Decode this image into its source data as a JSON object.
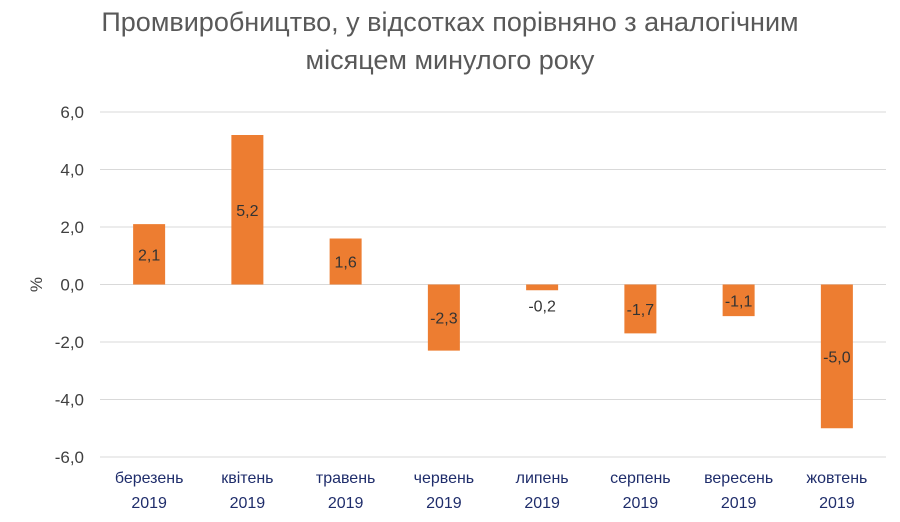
{
  "chart_data": {
    "type": "bar",
    "title_lines": [
      "Промвиробництво, у відсотках порівняно з аналогічним",
      "місяцем минулого року"
    ],
    "ylabel": "%",
    "xlabel": "",
    "ylim": [
      -6,
      6
    ],
    "yticks": [
      "6,0",
      "4,0",
      "2,0",
      "0,0",
      "-2,0",
      "-4,0",
      "-6,0"
    ],
    "ytick_values": [
      6,
      4,
      2,
      0,
      -2,
      -4,
      -6
    ],
    "grid": true,
    "legend": "none",
    "bar_color": "#ed7d31",
    "categories": [
      [
        "березень",
        "2019"
      ],
      [
        "квітень",
        "2019"
      ],
      [
        "травень",
        "2019"
      ],
      [
        "червень",
        "2019"
      ],
      [
        "липень",
        "2019"
      ],
      [
        "серпень",
        "2019"
      ],
      [
        "вересень",
        "2019"
      ],
      [
        "жовтень",
        "2019"
      ]
    ],
    "values": [
      2.1,
      5.2,
      1.6,
      -2.3,
      -0.2,
      -1.7,
      -1.1,
      -5.0
    ],
    "data_labels": [
      "2,1",
      "5,2",
      "1,6",
      "-2,3",
      "-0,2",
      "-1,7",
      "-1,1",
      "-5,0"
    ]
  }
}
